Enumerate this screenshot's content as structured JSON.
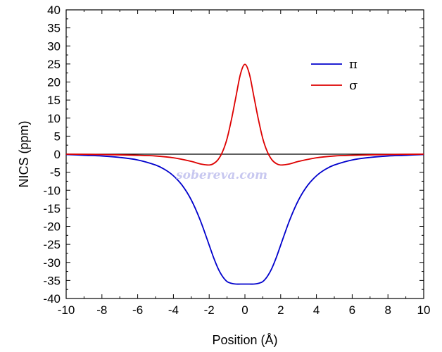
{
  "chart_data": {
    "type": "line",
    "title": "",
    "xlabel": "Position (Å)",
    "ylabel": "NICS (ppm)",
    "xlim": [
      -10,
      10
    ],
    "ylim": [
      -40,
      40
    ],
    "xticks": [
      -10,
      -8,
      -6,
      -4,
      -2,
      0,
      2,
      4,
      6,
      8,
      10
    ],
    "yticks": [
      -40,
      -35,
      -30,
      -25,
      -20,
      -15,
      -10,
      -5,
      0,
      5,
      10,
      15,
      20,
      25,
      30,
      35,
      40
    ],
    "grid": false,
    "legend_position": "top-right",
    "reference_line_y": 0,
    "watermark": "sobereva.com",
    "series": [
      {
        "name": "π",
        "color": "#0000cc",
        "x": [
          -10,
          -9,
          -8,
          -7,
          -6,
          -5,
          -4.5,
          -4,
          -3.5,
          -3,
          -2.5,
          -2,
          -1.75,
          -1.5,
          -1.25,
          -1,
          -0.75,
          -0.5,
          -0.25,
          0,
          0.25,
          0.5,
          0.75,
          1,
          1.25,
          1.5,
          1.75,
          2,
          2.5,
          3,
          3.5,
          4,
          4.5,
          5,
          6,
          7,
          8,
          9,
          10
        ],
        "y": [
          -0.1,
          -0.3,
          -0.5,
          -0.9,
          -1.6,
          -3.0,
          -4.2,
          -6.0,
          -8.7,
          -12.7,
          -18.3,
          -25.2,
          -28.7,
          -31.7,
          -33.9,
          -35.3,
          -35.8,
          -36.0,
          -36.0,
          -36.0,
          -36.0,
          -36.0,
          -35.8,
          -35.3,
          -33.9,
          -31.7,
          -28.7,
          -25.2,
          -18.3,
          -12.7,
          -8.7,
          -6.0,
          -4.2,
          -3.0,
          -1.6,
          -0.9,
          -0.5,
          -0.3,
          -0.1
        ]
      },
      {
        "name": "σ",
        "color": "#dd0000",
        "x": [
          -10,
          -8,
          -6,
          -5,
          -4,
          -3,
          -2.5,
          -2,
          -1.75,
          -1.5,
          -1.25,
          -1,
          -0.75,
          -0.5,
          -0.25,
          0,
          0.25,
          0.5,
          0.75,
          1,
          1.25,
          1.5,
          1.75,
          2,
          2.5,
          3,
          4,
          5,
          6,
          8,
          10
        ],
        "y": [
          0,
          -0.1,
          -0.3,
          -0.5,
          -1.0,
          -2.0,
          -2.7,
          -3.0,
          -2.6,
          -1.5,
          0.7,
          4.3,
          9.7,
          16.0,
          22.2,
          24.9,
          22.2,
          16.0,
          9.7,
          4.3,
          0.7,
          -1.5,
          -2.6,
          -3.0,
          -2.7,
          -2.0,
          -1.0,
          -0.5,
          -0.3,
          -0.1,
          0
        ]
      }
    ]
  }
}
